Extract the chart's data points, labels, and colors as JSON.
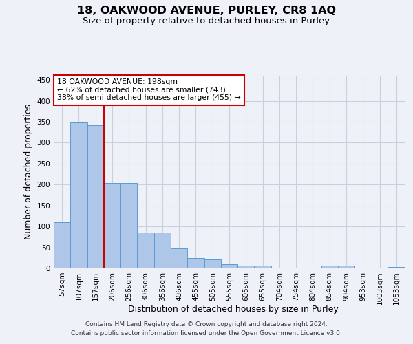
{
  "title1": "18, OAKWOOD AVENUE, PURLEY, CR8 1AQ",
  "title2": "Size of property relative to detached houses in Purley",
  "xlabel": "Distribution of detached houses by size in Purley",
  "ylabel": "Number of detached properties",
  "footnote1": "Contains HM Land Registry data © Crown copyright and database right 2024.",
  "footnote2": "Contains public sector information licensed under the Open Government Licence v3.0.",
  "bar_labels": [
    "57sqm",
    "107sqm",
    "157sqm",
    "206sqm",
    "256sqm",
    "306sqm",
    "356sqm",
    "406sqm",
    "455sqm",
    "505sqm",
    "555sqm",
    "605sqm",
    "655sqm",
    "704sqm",
    "754sqm",
    "804sqm",
    "854sqm",
    "904sqm",
    "953sqm",
    "1003sqm",
    "1053sqm"
  ],
  "bar_heights": [
    110,
    348,
    341,
    204,
    204,
    85,
    85,
    47,
    24,
    22,
    10,
    7,
    6,
    2,
    2,
    2,
    7,
    7,
    2,
    2,
    4
  ],
  "bar_color": "#aec6e8",
  "bar_edge_color": "#5b9bd5",
  "vline_x": 2.5,
  "vline_color": "#cc0000",
  "annotation_text": "18 OAKWOOD AVENUE: 198sqm\n← 62% of detached houses are smaller (743)\n38% of semi-detached houses are larger (455) →",
  "annotation_box_color": "white",
  "annotation_box_edge": "#cc0000",
  "ylim": [
    0,
    460
  ],
  "yticks": [
    0,
    50,
    100,
    150,
    200,
    250,
    300,
    350,
    400,
    450
  ],
  "bg_color": "#eef2f8",
  "grid_color": "#c8d0de",
  "title1_fontsize": 11.5,
  "title2_fontsize": 9.5,
  "axis_label_fontsize": 9,
  "tick_fontsize": 7.5,
  "footnote_fontsize": 6.5
}
